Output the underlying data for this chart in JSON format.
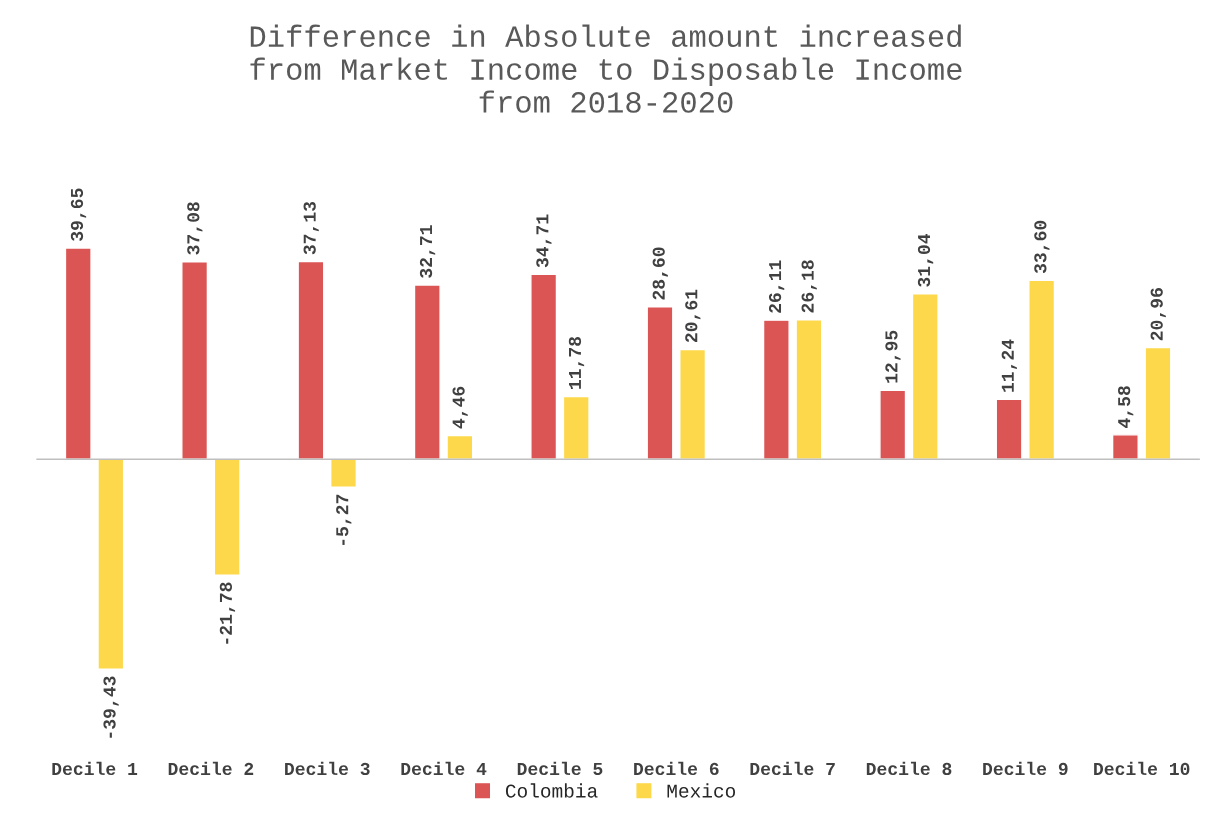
{
  "chart_data": {
    "type": "bar",
    "title": "Difference in Absolute amount increased\nfrom Market Income to Disposable Income\nfrom 2018-2020",
    "categories": [
      "Decile 1",
      "Decile 2",
      "Decile 3",
      "Decile 4",
      "Decile 5",
      "Decile 6",
      "Decile 7",
      "Decile 8",
      "Decile 9",
      "Decile 10"
    ],
    "series": [
      {
        "name": "Colombia",
        "color": "#dc5555",
        "values": [
          39.65,
          37.08,
          37.13,
          32.71,
          34.71,
          28.6,
          26.11,
          12.95,
          11.24,
          4.58
        ],
        "value_labels": [
          "39,65",
          "37,08",
          "37,13",
          "32,71",
          "34,71",
          "28,60",
          "26,11",
          "12,95",
          "11,24",
          "4,58"
        ]
      },
      {
        "name": "Mexico",
        "color": "#fcd84a",
        "values": [
          -39.43,
          -21.78,
          -5.27,
          4.46,
          11.78,
          20.61,
          26.18,
          31.04,
          33.6,
          20.96
        ],
        "value_labels": [
          "-39,43",
          "-21,78",
          "-5,27",
          "4,46",
          "11,78",
          "20,61",
          "26,18",
          "31,04",
          "33,60",
          "20,96"
        ]
      }
    ],
    "legend": "bottom",
    "grid": false
  }
}
